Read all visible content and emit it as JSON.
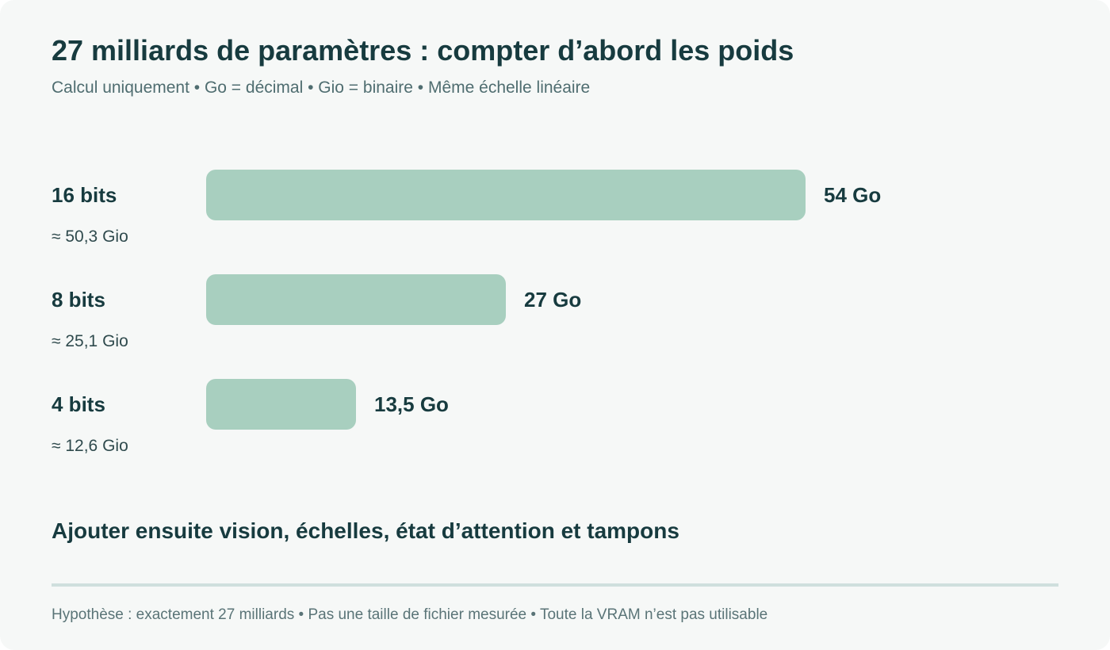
{
  "header": {
    "title": "27 milliards de paramètres : compter d’abord les poids",
    "subtitle": "Calcul uniquement • Go = décimal • Gio = binaire • Même échelle linéaire"
  },
  "chart_data": {
    "type": "bar",
    "orientation": "horizontal",
    "categories": [
      "16 bits",
      "8 bits",
      "4 bits"
    ],
    "sublabels": [
      "≈ 50,3 Gio",
      "≈ 25,1 Gio",
      "≈ 12,6 Gio"
    ],
    "values": [
      54,
      27,
      13.5
    ],
    "value_labels": [
      "54 Go",
      "27 Go",
      "13,5 Go"
    ],
    "unit": "Go",
    "xlim": [
      0,
      54
    ],
    "grid": false,
    "legend": "none",
    "bar_color": "#a8cfbf"
  },
  "next_step": "Ajouter ensuite vision, échelles, état d’attention et tampons",
  "footnote": "Hypothèse : exactement 27 milliards • Pas une taille de fichier mesurée • Toute la VRAM n’est pas utilisable"
}
